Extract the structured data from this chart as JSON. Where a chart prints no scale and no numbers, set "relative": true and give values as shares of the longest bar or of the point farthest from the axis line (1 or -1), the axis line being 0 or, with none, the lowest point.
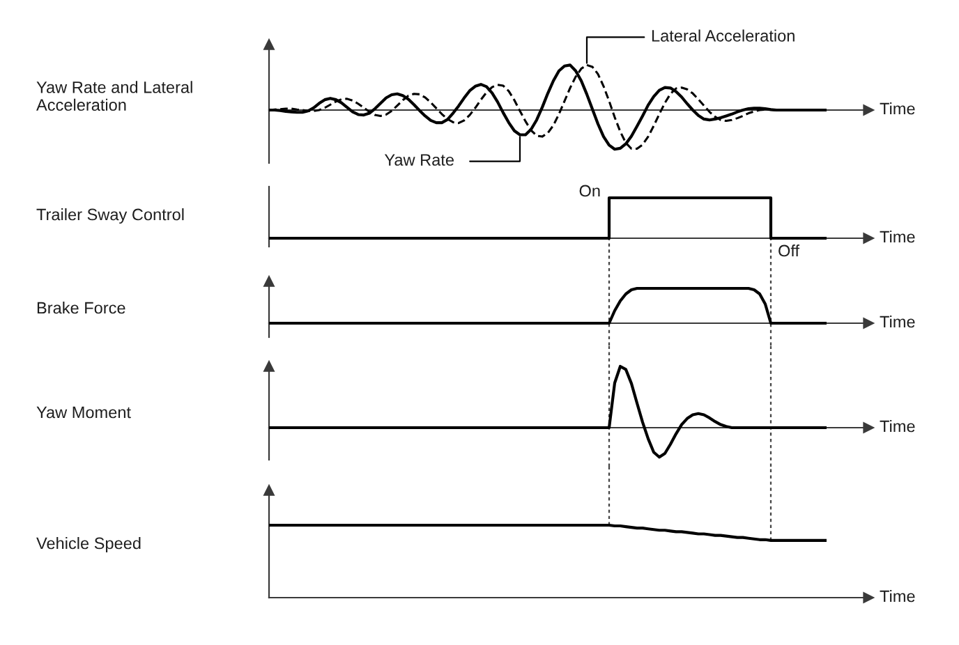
{
  "chart_data": [
    {
      "type": "line",
      "ylabel": "Yaw Rate and Lateral Acceleration",
      "xlabel": "Time",
      "relative": true,
      "categories": [
        null,
        null,
        null,
        null,
        null,
        null,
        null,
        null,
        null,
        null,
        null,
        null,
        null,
        null,
        null,
        null,
        null,
        null,
        null,
        null,
        null,
        null,
        null,
        null,
        null,
        null,
        null,
        null,
        null,
        null,
        null,
        null,
        null,
        null,
        null,
        null,
        null,
        null,
        null,
        null,
        null,
        null,
        null,
        null,
        null,
        null,
        null,
        null,
        null,
        null,
        null,
        null,
        null,
        null,
        null,
        null,
        null,
        null,
        null,
        null,
        null,
        null,
        null,
        null,
        null,
        null,
        null,
        null,
        null,
        null,
        null,
        null,
        null,
        null,
        null,
        null,
        null,
        null,
        null,
        null,
        null,
        null,
        null,
        null,
        null,
        null,
        null,
        null,
        null,
        null,
        null,
        null,
        null,
        null,
        null,
        null,
        null,
        null,
        null,
        null,
        null
      ],
      "series": [
        {
          "name": "Yaw Rate",
          "color": "#000000",
          "line_style": "solid",
          "values": [
            0,
            0,
            -0.01,
            -0.03,
            -0.04,
            -0.05,
            -0.05,
            -0.02,
            0.05,
            0.15,
            0.23,
            0.26,
            0.23,
            0.16,
            0.06,
            -0.04,
            -0.1,
            -0.11,
            -0.07,
            0.03,
            0.15,
            0.27,
            0.34,
            0.36,
            0.32,
            0.24,
            0.12,
            -0.01,
            -0.13,
            -0.23,
            -0.28,
            -0.28,
            -0.21,
            -0.07,
            0.09,
            0.27,
            0.43,
            0.53,
            0.57,
            0.52,
            0.38,
            0.18,
            -0.06,
            -0.28,
            -0.46,
            -0.55,
            -0.55,
            -0.43,
            -0.22,
            0.06,
            0.37,
            0.65,
            0.87,
            0.98,
            1,
            0.87,
            0.65,
            0.35,
            0.02,
            -0.31,
            -0.59,
            -0.78,
            -0.87,
            -0.85,
            -0.75,
            -0.58,
            -0.36,
            -0.13,
            0.11,
            0.3,
            0.44,
            0.5,
            0.49,
            0.41,
            0.29,
            0.14,
            0,
            -0.12,
            -0.2,
            -0.22,
            -0.2,
            -0.17,
            -0.13,
            -0.09,
            -0.04,
            0,
            0.03,
            0.04,
            0.04,
            0.03,
            0.01,
            0,
            0,
            0,
            0,
            0,
            0,
            0,
            0,
            0,
            0
          ]
        },
        {
          "name": "Lateral Acceleration",
          "color": "#000000",
          "line_style": "dashed",
          "values": [
            0,
            0.01,
            0.02,
            0.03,
            0.03,
            0.01,
            0,
            -0.02,
            -0.02,
            0,
            0.05,
            0.12,
            0.19,
            0.24,
            0.25,
            0.21,
            0.14,
            0.05,
            -0.04,
            -0.11,
            -0.13,
            -0.1,
            -0.02,
            0.1,
            0.22,
            0.32,
            0.36,
            0.35,
            0.28,
            0.17,
            0.04,
            -0.09,
            -0.2,
            -0.27,
            -0.29,
            -0.23,
            -0.11,
            0.05,
            0.23,
            0.39,
            0.51,
            0.56,
            0.54,
            0.42,
            0.22,
            -0.02,
            -0.25,
            -0.45,
            -0.57,
            -0.59,
            -0.51,
            -0.34,
            -0.09,
            0.2,
            0.49,
            0.74,
            0.92,
            1,
            0.96,
            0.8,
            0.53,
            0.2,
            -0.16,
            -0.48,
            -0.73,
            -0.86,
            -0.86,
            -0.77,
            -0.59,
            -0.35,
            -0.09,
            0.16,
            0.36,
            0.48,
            0.5,
            0.46,
            0.37,
            0.24,
            0.1,
            -0.04,
            -0.15,
            -0.22,
            -0.24,
            -0.22,
            -0.18,
            -0.13,
            -0.07,
            -0.03,
            0,
            0.01,
            0.01,
            0,
            0,
            0,
            0,
            0,
            0,
            0,
            0,
            0,
            0
          ]
        }
      ]
    },
    {
      "type": "step",
      "ylabel": "Trailer Sway Control",
      "xlabel": "Time",
      "relative": true,
      "annotations": [
        "On",
        "Off"
      ],
      "categories": [
        null,
        null,
        null,
        null,
        null,
        null,
        null,
        null,
        null,
        null,
        null,
        null,
        null,
        null,
        null,
        null,
        null,
        null,
        null,
        null,
        null,
        null,
        null,
        null,
        null,
        null,
        null,
        null,
        null,
        null,
        null,
        null,
        null,
        null,
        null,
        null,
        null,
        null,
        null,
        null,
        null,
        null,
        null,
        null,
        null,
        null,
        null,
        null,
        null,
        null,
        null,
        null,
        null,
        null,
        null,
        null,
        null,
        null,
        null,
        null,
        null,
        null,
        null,
        null,
        null,
        null,
        null,
        null,
        null,
        null,
        null,
        null,
        null,
        null,
        null,
        null,
        null,
        null,
        null,
        null,
        null,
        null,
        null,
        null,
        null,
        null,
        null,
        null,
        null,
        null,
        null,
        null,
        null,
        null,
        null,
        null,
        null,
        null,
        null,
        null,
        null
      ],
      "color": "#000000",
      "values": [
        0,
        0,
        0,
        0,
        0,
        0,
        0,
        0,
        0,
        0,
        0,
        0,
        0,
        0,
        0,
        0,
        0,
        0,
        0,
        0,
        0,
        0,
        0,
        0,
        0,
        0,
        0,
        0,
        0,
        0,
        0,
        0,
        0,
        0,
        0,
        0,
        0,
        0,
        0,
        0,
        0,
        0,
        0,
        0,
        0,
        0,
        0,
        0,
        0,
        0,
        0,
        0,
        0,
        0,
        0,
        0,
        0,
        0,
        0,
        0,
        0,
        1,
        1,
        1,
        1,
        1,
        1,
        1,
        1,
        1,
        1,
        1,
        1,
        1,
        1,
        1,
        1,
        1,
        1,
        1,
        1,
        1,
        1,
        1,
        1,
        1,
        1,
        1,
        1,
        1,
        0,
        0,
        0,
        0,
        0,
        0,
        0,
        0,
        0,
        0,
        0
      ]
    },
    {
      "type": "line",
      "ylabel": "Brake Force",
      "xlabel": "Time",
      "relative": true,
      "categories": [
        null,
        null,
        null,
        null,
        null,
        null,
        null,
        null,
        null,
        null,
        null,
        null,
        null,
        null,
        null,
        null,
        null,
        null,
        null,
        null,
        null,
        null,
        null,
        null,
        null,
        null,
        null,
        null,
        null,
        null,
        null,
        null,
        null,
        null,
        null,
        null,
        null,
        null,
        null,
        null,
        null,
        null,
        null,
        null,
        null,
        null,
        null,
        null,
        null,
        null,
        null,
        null,
        null,
        null,
        null,
        null,
        null,
        null,
        null,
        null,
        null,
        null,
        null,
        null,
        null,
        null,
        null,
        null,
        null,
        null,
        null,
        null,
        null,
        null,
        null,
        null,
        null,
        null,
        null,
        null,
        null,
        null,
        null,
        null,
        null,
        null,
        null,
        null,
        null,
        null,
        null,
        null,
        null,
        null,
        null,
        null,
        null,
        null,
        null,
        null,
        null
      ],
      "color": "#000000",
      "values": [
        0,
        0,
        0,
        0,
        0,
        0,
        0,
        0,
        0,
        0,
        0,
        0,
        0,
        0,
        0,
        0,
        0,
        0,
        0,
        0,
        0,
        0,
        0,
        0,
        0,
        0,
        0,
        0,
        0,
        0,
        0,
        0,
        0,
        0,
        0,
        0,
        0,
        0,
        0,
        0,
        0,
        0,
        0,
        0,
        0,
        0,
        0,
        0,
        0,
        0,
        0,
        0,
        0,
        0,
        0,
        0,
        0,
        0,
        0,
        0,
        0,
        0,
        0.36,
        0.64,
        0.84,
        0.96,
        1,
        1,
        1,
        1,
        1,
        1,
        1,
        1,
        1,
        1,
        1,
        1,
        1,
        1,
        1,
        1,
        1,
        1,
        1,
        1,
        1,
        0.96,
        0.84,
        0.55,
        0,
        0,
        0,
        0,
        0,
        0,
        0,
        0,
        0,
        0,
        0
      ]
    },
    {
      "type": "line",
      "ylabel": "Yaw Moment",
      "xlabel": "Time",
      "relative": true,
      "categories": [
        null,
        null,
        null,
        null,
        null,
        null,
        null,
        null,
        null,
        null,
        null,
        null,
        null,
        null,
        null,
        null,
        null,
        null,
        null,
        null,
        null,
        null,
        null,
        null,
        null,
        null,
        null,
        null,
        null,
        null,
        null,
        null,
        null,
        null,
        null,
        null,
        null,
        null,
        null,
        null,
        null,
        null,
        null,
        null,
        null,
        null,
        null,
        null,
        null,
        null,
        null,
        null,
        null,
        null,
        null,
        null,
        null,
        null,
        null,
        null,
        null,
        null,
        null,
        null,
        null,
        null,
        null,
        null,
        null,
        null,
        null,
        null,
        null,
        null,
        null,
        null,
        null,
        null,
        null,
        null,
        null,
        null,
        null,
        null,
        null,
        null,
        null,
        null,
        null,
        null,
        null,
        null,
        null,
        null,
        null,
        null,
        null,
        null,
        null,
        null,
        null
      ],
      "color": "#000000",
      "values": [
        0,
        0,
        0,
        0,
        0,
        0,
        0,
        0,
        0,
        0,
        0,
        0,
        0,
        0,
        0,
        0,
        0,
        0,
        0,
        0,
        0,
        0,
        0,
        0,
        0,
        0,
        0,
        0,
        0,
        0,
        0,
        0,
        0,
        0,
        0,
        0,
        0,
        0,
        0,
        0,
        0,
        0,
        0,
        0,
        0,
        0,
        0,
        0,
        0,
        0,
        0,
        0,
        0,
        0,
        0,
        0,
        0,
        0,
        0,
        0,
        0,
        0,
        0.73,
        1,
        0.95,
        0.72,
        0.4,
        0.09,
        -0.18,
        -0.4,
        -0.48,
        -0.42,
        -0.27,
        -0.1,
        0.05,
        0.15,
        0.21,
        0.23,
        0.21,
        0.16,
        0.1,
        0.05,
        0.02,
        0,
        0,
        0,
        0,
        0,
        0,
        0,
        0,
        0,
        0,
        0,
        0,
        0,
        0,
        0,
        0,
        0,
        0
      ]
    },
    {
      "type": "line",
      "ylabel": "Vehicle Speed",
      "xlabel": "Time",
      "relative": true,
      "categories": [
        null,
        null,
        null,
        null,
        null,
        null,
        null,
        null,
        null,
        null,
        null,
        null,
        null,
        null,
        null,
        null,
        null,
        null,
        null,
        null,
        null,
        null,
        null,
        null,
        null,
        null,
        null,
        null,
        null,
        null,
        null,
        null,
        null,
        null,
        null,
        null,
        null,
        null,
        null,
        null,
        null,
        null,
        null,
        null,
        null,
        null,
        null,
        null,
        null,
        null,
        null,
        null,
        null,
        null,
        null,
        null,
        null,
        null,
        null,
        null,
        null,
        null,
        null,
        null,
        null,
        null,
        null,
        null,
        null,
        null,
        null,
        null,
        null,
        null,
        null,
        null,
        null,
        null,
        null,
        null,
        null,
        null,
        null,
        null,
        null,
        null,
        null,
        null,
        null,
        null,
        null,
        null,
        null,
        null,
        null,
        null,
        null,
        null,
        null,
        null,
        null
      ],
      "color": "#000000",
      "values": [
        1,
        1,
        1,
        1,
        1,
        1,
        1,
        1,
        1,
        1,
        1,
        1,
        1,
        1,
        1,
        1,
        1,
        1,
        1,
        1,
        1,
        1,
        1,
        1,
        1,
        1,
        1,
        1,
        1,
        1,
        1,
        1,
        1,
        1,
        1,
        1,
        1,
        1,
        1,
        1,
        1,
        1,
        1,
        1,
        1,
        1,
        1,
        1,
        1,
        1,
        1,
        1,
        1,
        1,
        1,
        1,
        1,
        1,
        1,
        1,
        1,
        1,
        0.99,
        0.99,
        0.98,
        0.97,
        0.96,
        0.96,
        0.95,
        0.94,
        0.93,
        0.93,
        0.92,
        0.91,
        0.91,
        0.9,
        0.89,
        0.88,
        0.88,
        0.87,
        0.86,
        0.86,
        0.85,
        0.84,
        0.83,
        0.83,
        0.82,
        0.81,
        0.8,
        0.8,
        0.79,
        0.79,
        0.79,
        0.79,
        0.79,
        0.79,
        0.79,
        0.79,
        0.79,
        0.79,
        0.79
      ]
    }
  ]
}
